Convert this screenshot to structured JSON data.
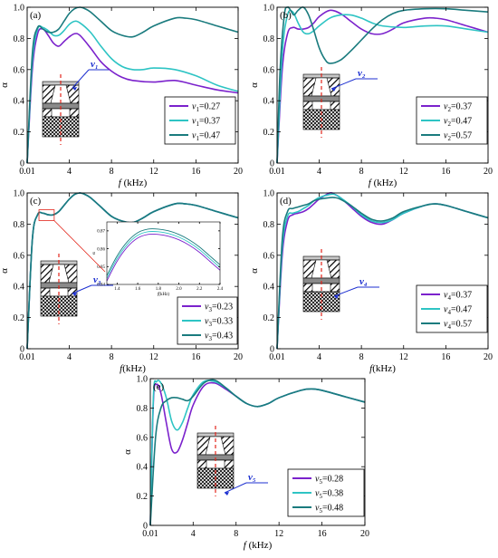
{
  "colors": {
    "purple": "#7b22cc",
    "cyan": "#2ec4c4",
    "teal": "#1a7b7e",
    "dash": "#e3261b",
    "pointer": "#1c2fd0"
  },
  "chart_data": [
    {
      "type": "line",
      "panel": "(a)",
      "xlabel_var": "f",
      "xlabel_unit": " (kHz)",
      "ylabel": "α",
      "xlim": [
        0.01,
        20
      ],
      "ylim": [
        0,
        1.0
      ],
      "xticks": [
        0.01,
        4,
        8,
        12,
        16,
        20
      ],
      "xtick_labels": [
        "0.01",
        "4",
        "8",
        "12",
        "16",
        "20"
      ],
      "yticks": [
        0,
        0.2,
        0.4,
        0.6,
        0.8,
        1.0
      ],
      "ytick_labels": [
        "0",
        "0.2",
        "0.4",
        "0.6",
        "0.8",
        "1.0"
      ],
      "diagram_label": "v₁",
      "legend": {
        "var": "v",
        "sub": "1"
      },
      "series": [
        {
          "name": "0.27",
          "color": "purple",
          "x": [
            0.01,
            0.5,
            1,
            1.5,
            2,
            2.5,
            3,
            3.5,
            4,
            4.5,
            5,
            6,
            7,
            8,
            9,
            10,
            12,
            14,
            16,
            18,
            20
          ],
          "y": [
            0,
            0.6,
            0.83,
            0.86,
            0.82,
            0.77,
            0.75,
            0.78,
            0.81,
            0.83,
            0.82,
            0.74,
            0.65,
            0.59,
            0.55,
            0.53,
            0.52,
            0.53,
            0.5,
            0.47,
            0.45
          ]
        },
        {
          "name": "0.37",
          "color": "cyan",
          "x": [
            0.01,
            0.5,
            1,
            1.5,
            2,
            2.5,
            3,
            3.5,
            4,
            4.5,
            5,
            6,
            7,
            8,
            9,
            10,
            11,
            12,
            14,
            16,
            18,
            20
          ],
          "y": [
            0,
            0.65,
            0.86,
            0.87,
            0.85,
            0.82,
            0.82,
            0.85,
            0.89,
            0.91,
            0.9,
            0.84,
            0.75,
            0.67,
            0.62,
            0.6,
            0.6,
            0.61,
            0.6,
            0.56,
            0.5,
            0.46
          ]
        },
        {
          "name": "0.47",
          "color": "teal",
          "x": [
            0.01,
            0.5,
            1,
            1.5,
            2,
            2.5,
            3,
            3.5,
            4,
            4.5,
            5,
            5.5,
            6,
            7,
            8,
            9,
            10,
            11,
            12,
            14,
            15,
            16,
            18,
            20
          ],
          "y": [
            0,
            0.7,
            0.87,
            0.86,
            0.84,
            0.84,
            0.86,
            0.91,
            0.96,
            0.99,
            1.0,
            0.99,
            0.97,
            0.91,
            0.85,
            0.82,
            0.81,
            0.84,
            0.88,
            0.93,
            0.93,
            0.92,
            0.88,
            0.84
          ]
        }
      ]
    },
    {
      "type": "line",
      "panel": "(b)",
      "xlabel_var": "f",
      "xlabel_unit": " (kHz)",
      "ylabel": "α",
      "xlim": [
        0.01,
        20
      ],
      "ylim": [
        0,
        1.0
      ],
      "xticks": [
        0.01,
        4,
        8,
        12,
        16,
        20
      ],
      "xtick_labels": [
        "0.01",
        "4",
        "8",
        "12",
        "16",
        "20"
      ],
      "yticks": [
        0,
        0.2,
        0.4,
        0.6,
        0.8,
        1.0
      ],
      "ytick_labels": [
        "0",
        "0.2",
        "0.4",
        "0.6",
        "0.8",
        "1.0"
      ],
      "diagram_label": "v₂",
      "legend": {
        "var": "v",
        "sub": "2"
      },
      "series": [
        {
          "name": "0.37",
          "color": "purple",
          "x": [
            0.01,
            0.5,
            1,
            1.5,
            2,
            2.5,
            3,
            3.5,
            4,
            5,
            6,
            7,
            8,
            9,
            10,
            11,
            12,
            14,
            15,
            16,
            18,
            20
          ],
          "y": [
            0,
            0.6,
            0.83,
            0.87,
            0.86,
            0.86,
            0.87,
            0.9,
            0.94,
            0.98,
            0.96,
            0.91,
            0.86,
            0.83,
            0.83,
            0.86,
            0.9,
            0.93,
            0.93,
            0.92,
            0.88,
            0.84
          ]
        },
        {
          "name": "0.47",
          "color": "cyan",
          "x": [
            0.01,
            0.5,
            1,
            1.5,
            2,
            2.5,
            3,
            3.5,
            4,
            5,
            6,
            7,
            8,
            9,
            10,
            12,
            14,
            16,
            18,
            20
          ],
          "y": [
            0,
            0.7,
            0.95,
            0.97,
            0.9,
            0.84,
            0.83,
            0.85,
            0.88,
            0.93,
            0.95,
            0.95,
            0.93,
            0.9,
            0.88,
            0.87,
            0.88,
            0.88,
            0.86,
            0.84
          ]
        },
        {
          "name": "0.57",
          "color": "teal",
          "x": [
            0.01,
            0.3,
            0.7,
            1,
            1.3,
            1.6,
            2,
            2.5,
            3,
            3.5,
            4,
            4.5,
            5,
            6,
            7,
            8,
            9,
            10,
            11,
            12,
            14,
            16,
            18,
            20
          ],
          "y": [
            0,
            0.6,
            0.95,
            1.0,
            0.98,
            0.95,
            0.98,
            1.0,
            0.95,
            0.85,
            0.74,
            0.67,
            0.64,
            0.66,
            0.72,
            0.79,
            0.86,
            0.92,
            0.96,
            0.98,
            0.99,
            0.99,
            0.98,
            0.97
          ]
        }
      ]
    },
    {
      "type": "line",
      "panel": "(c)",
      "xlabel_var": "f",
      "xlabel_unit": "(kHz)",
      "ylabel": "α",
      "xlim": [
        0.01,
        20
      ],
      "ylim": [
        0,
        1.0
      ],
      "xticks": [
        0.01,
        4,
        8,
        12,
        16,
        20
      ],
      "xtick_labels": [
        "0.01",
        "4",
        "8",
        "12",
        "16",
        "20"
      ],
      "yticks": [
        0,
        0.2,
        0.4,
        0.6,
        0.8,
        1.0
      ],
      "ytick_labels": [
        "0",
        "0.2",
        "0.4",
        "0.6",
        "0.8",
        "1.0"
      ],
      "diagram_label": "v₃",
      "legend": {
        "var": "v",
        "sub": "3"
      },
      "series": [
        {
          "name": "0.23",
          "color": "purple",
          "x": [
            0.01,
            0.5,
            1,
            1.5,
            2,
            2.5,
            3,
            3.5,
            4,
            4.5,
            5,
            5.5,
            6,
            7,
            8,
            9,
            10,
            11,
            12,
            14,
            15,
            16,
            18,
            20
          ],
          "y": [
            0,
            0.7,
            0.86,
            0.87,
            0.86,
            0.86,
            0.88,
            0.92,
            0.96,
            0.99,
            1.0,
            0.99,
            0.97,
            0.91,
            0.85,
            0.82,
            0.81,
            0.84,
            0.88,
            0.93,
            0.93,
            0.92,
            0.88,
            0.84
          ]
        },
        {
          "name": "0.33",
          "color": "cyan",
          "x": [
            0.01,
            0.5,
            1,
            1.5,
            2,
            2.5,
            3,
            3.5,
            4,
            4.5,
            5,
            5.5,
            6,
            7,
            8,
            9,
            10,
            11,
            12,
            14,
            15,
            16,
            18,
            20
          ],
          "y": [
            0,
            0.7,
            0.86,
            0.87,
            0.86,
            0.86,
            0.88,
            0.92,
            0.96,
            0.99,
            1.0,
            0.99,
            0.97,
            0.91,
            0.85,
            0.82,
            0.81,
            0.84,
            0.88,
            0.93,
            0.93,
            0.92,
            0.88,
            0.84
          ]
        },
        {
          "name": "0.43",
          "color": "teal",
          "x": [
            0.01,
            0.5,
            1,
            1.5,
            2,
            2.5,
            3,
            3.5,
            4,
            4.5,
            5,
            5.5,
            6,
            7,
            8,
            9,
            10,
            11,
            12,
            14,
            15,
            16,
            18,
            20
          ],
          "y": [
            0,
            0.7,
            0.86,
            0.87,
            0.86,
            0.86,
            0.88,
            0.92,
            0.96,
            0.99,
            1.0,
            0.99,
            0.97,
            0.91,
            0.85,
            0.82,
            0.81,
            0.84,
            0.88,
            0.93,
            0.93,
            0.92,
            0.88,
            0.84
          ]
        }
      ]
    },
    {
      "type": "line",
      "panel": "(c) inset",
      "xlabel_var": "f",
      "xlabel_unit": "(kHz)",
      "ylabel": "α",
      "xlim": [
        1.3,
        2.4
      ],
      "ylim": [
        0.84,
        0.875
      ],
      "xticks": [
        1.4,
        1.6,
        1.8,
        2.0,
        2.2,
        2.4
      ],
      "xtick_labels": [
        "1.4",
        "1.6",
        "1.8",
        "2.0",
        "2.2",
        "2.4"
      ],
      "yticks": [
        0.84,
        0.85,
        0.86,
        0.87
      ],
      "ytick_labels": [
        "0.84",
        "0.85",
        "0.86",
        "0.87"
      ],
      "series": [
        {
          "name": "0.23",
          "color": "purple",
          "x": [
            1.3,
            1.4,
            1.5,
            1.6,
            1.7,
            1.8,
            1.9,
            2.0,
            2.1,
            2.2,
            2.3,
            2.4
          ],
          "y": [
            0.842,
            0.853,
            0.861,
            0.866,
            0.868,
            0.868,
            0.867,
            0.865,
            0.862,
            0.858,
            0.853,
            0.848
          ]
        },
        {
          "name": "0.33",
          "color": "cyan",
          "x": [
            1.3,
            1.4,
            1.5,
            1.6,
            1.7,
            1.8,
            1.9,
            2.0,
            2.1,
            2.2,
            2.3,
            2.4
          ],
          "y": [
            0.8435,
            0.8545,
            0.8625,
            0.8675,
            0.8695,
            0.8695,
            0.8685,
            0.8665,
            0.8635,
            0.8595,
            0.8545,
            0.8495
          ]
        },
        {
          "name": "0.43",
          "color": "teal",
          "x": [
            1.3,
            1.4,
            1.5,
            1.6,
            1.7,
            1.8,
            1.9,
            2.0,
            2.1,
            2.2,
            2.3,
            2.4
          ],
          "y": [
            0.845,
            0.856,
            0.864,
            0.869,
            0.871,
            0.871,
            0.87,
            0.868,
            0.865,
            0.861,
            0.856,
            0.851
          ]
        }
      ]
    },
    {
      "type": "line",
      "panel": "(d)",
      "xlabel_var": "f",
      "xlabel_unit": "(kHz)",
      "ylabel": "α",
      "xlim": [
        0.01,
        20
      ],
      "ylim": [
        0,
        1.0
      ],
      "xticks": [
        0.01,
        4,
        8,
        12,
        16,
        20
      ],
      "xtick_labels": [
        "0.01",
        "4",
        "8",
        "12",
        "16",
        "20"
      ],
      "yticks": [
        0,
        0.2,
        0.4,
        0.6,
        0.8,
        1.0
      ],
      "ytick_labels": [
        "0",
        "0.2",
        "0.4",
        "0.6",
        "0.8",
        "1.0"
      ],
      "diagram_label": "v₄",
      "legend": {
        "var": "v",
        "sub": "4"
      },
      "series": [
        {
          "name": "0.37",
          "color": "purple",
          "x": [
            0.01,
            0.5,
            1,
            1.5,
            2,
            2.5,
            3,
            3.5,
            4,
            5,
            5.5,
            6,
            7,
            8,
            9,
            10,
            11,
            12,
            14,
            15,
            16,
            18,
            20
          ],
          "y": [
            0,
            0.6,
            0.82,
            0.86,
            0.87,
            0.88,
            0.9,
            0.93,
            0.96,
            1.0,
            0.99,
            0.97,
            0.91,
            0.85,
            0.81,
            0.8,
            0.83,
            0.87,
            0.92,
            0.93,
            0.92,
            0.88,
            0.84
          ]
        },
        {
          "name": "0.47",
          "color": "cyan",
          "x": [
            0.01,
            0.5,
            1,
            1.5,
            2,
            2.5,
            3,
            3.5,
            4,
            5,
            5.5,
            6,
            7,
            8,
            9,
            10,
            11,
            12,
            14,
            15,
            16,
            18,
            20
          ],
          "y": [
            0,
            0.65,
            0.85,
            0.87,
            0.88,
            0.9,
            0.92,
            0.95,
            0.97,
            0.99,
            0.99,
            0.97,
            0.92,
            0.86,
            0.82,
            0.81,
            0.83,
            0.87,
            0.92,
            0.93,
            0.92,
            0.88,
            0.84
          ]
        },
        {
          "name": "0.57",
          "color": "teal",
          "x": [
            0.01,
            0.5,
            1,
            1.5,
            2,
            2.5,
            3,
            3.5,
            4,
            5,
            5.5,
            6,
            7,
            8,
            9,
            10,
            11,
            12,
            14,
            15,
            16,
            18,
            20
          ],
          "y": [
            0,
            0.7,
            0.88,
            0.9,
            0.91,
            0.92,
            0.93,
            0.95,
            0.96,
            0.97,
            0.97,
            0.96,
            0.92,
            0.87,
            0.83,
            0.82,
            0.84,
            0.88,
            0.92,
            0.93,
            0.92,
            0.88,
            0.84
          ]
        }
      ]
    },
    {
      "type": "line",
      "panel": "(e)",
      "xlabel_var": "f",
      "xlabel_unit": " (kHz)",
      "ylabel": "α",
      "xlim": [
        0.01,
        20
      ],
      "ylim": [
        0,
        1.0
      ],
      "xticks": [
        0.01,
        4,
        8,
        12,
        16,
        20
      ],
      "xtick_labels": [
        "0.01",
        "4",
        "8",
        "12",
        "16",
        "20"
      ],
      "yticks": [
        0,
        0.2,
        0.4,
        0.6,
        0.8,
        1.0
      ],
      "ytick_labels": [
        "0",
        "0.2",
        "0.4",
        "0.6",
        "0.8",
        "1.0"
      ],
      "diagram_label": "v₅",
      "legend": {
        "var": "v",
        "sub": "5"
      },
      "series": [
        {
          "name": "0.28",
          "color": "purple",
          "x": [
            0.01,
            0.3,
            0.6,
            1,
            1.5,
            2,
            2.5,
            3,
            3.5,
            4,
            5,
            6,
            7,
            8,
            9,
            10,
            11,
            12,
            14,
            15,
            16,
            18,
            20
          ],
          "y": [
            0,
            0.85,
            0.96,
            0.9,
            0.7,
            0.52,
            0.5,
            0.58,
            0.7,
            0.82,
            0.95,
            0.97,
            0.93,
            0.88,
            0.83,
            0.81,
            0.83,
            0.87,
            0.92,
            0.93,
            0.92,
            0.88,
            0.84
          ]
        },
        {
          "name": "0.38",
          "color": "cyan",
          "x": [
            0.01,
            0.3,
            0.6,
            1,
            1.5,
            2,
            2.5,
            3,
            3.5,
            4,
            5,
            6,
            7,
            8,
            9,
            10,
            11,
            12,
            14,
            15,
            16,
            18,
            20
          ],
          "y": [
            0,
            0.88,
            0.98,
            0.97,
            0.87,
            0.71,
            0.65,
            0.7,
            0.8,
            0.89,
            0.98,
            0.98,
            0.94,
            0.88,
            0.83,
            0.81,
            0.83,
            0.87,
            0.92,
            0.93,
            0.92,
            0.88,
            0.84
          ]
        },
        {
          "name": "0.48",
          "color": "teal",
          "x": [
            0.01,
            0.5,
            1,
            1.5,
            2,
            2.5,
            3,
            3.5,
            4,
            5,
            6,
            7,
            8,
            9,
            10,
            11,
            12,
            14,
            15,
            16,
            18,
            20
          ],
          "y": [
            0,
            0.6,
            0.8,
            0.85,
            0.87,
            0.87,
            0.86,
            0.85,
            0.88,
            0.97,
            0.99,
            0.94,
            0.88,
            0.83,
            0.81,
            0.83,
            0.87,
            0.92,
            0.93,
            0.92,
            0.88,
            0.84
          ]
        }
      ]
    }
  ]
}
